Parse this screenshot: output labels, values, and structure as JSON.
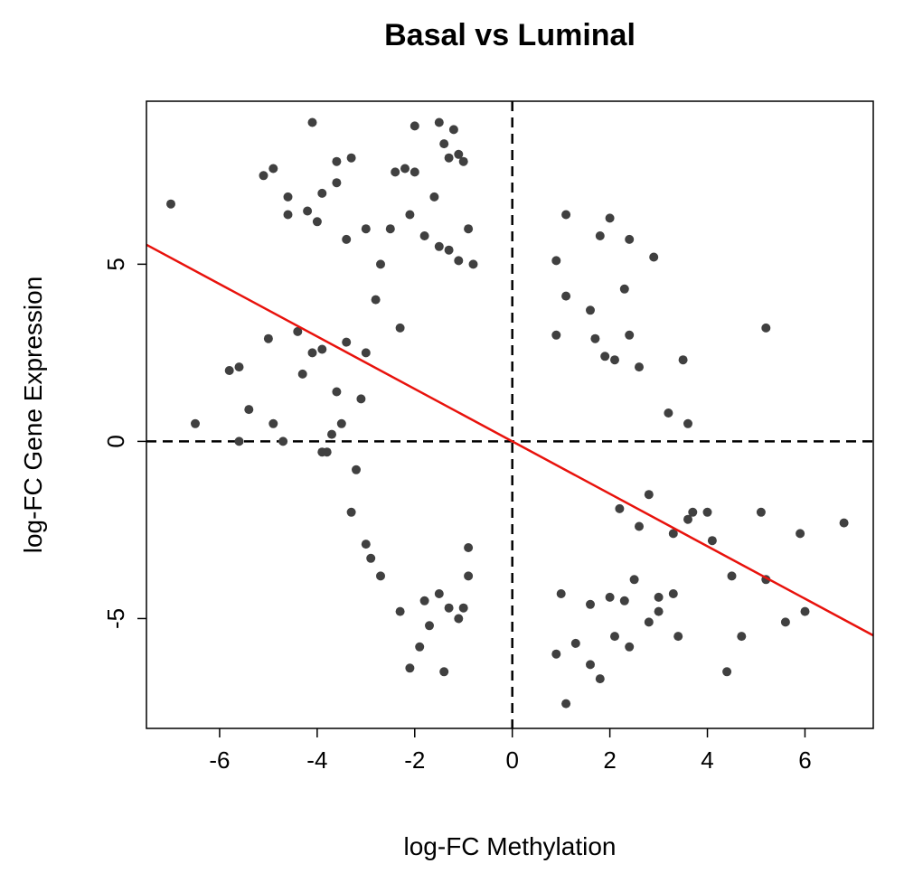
{
  "chart_data": {
    "type": "scatter",
    "title": "Basal vs Luminal",
    "xlabel": "log-FC Methylation",
    "ylabel": "log-FC Gene Expression",
    "xlim": [
      -7.5,
      7.4
    ],
    "ylim": [
      -8.1,
      9.6
    ],
    "x_ticks": [
      -6,
      -4,
      -2,
      0,
      2,
      4,
      6
    ],
    "y_ticks": [
      -5,
      0,
      5
    ],
    "x_tick_labels": [
      "-6",
      "-4",
      "-2",
      "0",
      "2",
      "4",
      "6"
    ],
    "y_tick_labels": [
      "-5",
      "0",
      "5"
    ],
    "grid": false,
    "reference_lines": {
      "x": 0,
      "y": 0
    },
    "regression_line": {
      "slope": -0.74,
      "intercept": 0.0
    },
    "colors": {
      "points": "#404040",
      "regression": "#e8120c",
      "reference": "#000000"
    },
    "series": [
      {
        "points": [
          [
            -7.0,
            6.7
          ],
          [
            -5.1,
            7.5
          ],
          [
            -4.9,
            7.7
          ],
          [
            -4.1,
            9.0
          ],
          [
            -3.6,
            7.9
          ],
          [
            -3.3,
            8.0
          ],
          [
            -3.6,
            7.3
          ],
          [
            -3.9,
            7.0
          ],
          [
            -4.2,
            6.5
          ],
          [
            -4.0,
            6.2
          ],
          [
            -4.6,
            6.9
          ],
          [
            -4.6,
            6.4
          ],
          [
            -3.4,
            5.7
          ],
          [
            -6.5,
            0.5
          ],
          [
            -5.8,
            2.0
          ],
          [
            -5.6,
            2.1
          ],
          [
            -5.4,
            0.9
          ],
          [
            -5.6,
            0.0
          ],
          [
            -5.0,
            2.9
          ],
          [
            -4.9,
            0.5
          ],
          [
            -4.7,
            0.0
          ],
          [
            -4.4,
            3.1
          ],
          [
            -4.3,
            1.9
          ],
          [
            -4.1,
            2.5
          ],
          [
            -3.9,
            2.6
          ],
          [
            -3.8,
            -0.3
          ],
          [
            -3.7,
            0.2
          ],
          [
            -3.6,
            1.4
          ],
          [
            -3.5,
            0.5
          ],
          [
            -3.4,
            2.8
          ],
          [
            -3.3,
            -2.0
          ],
          [
            -3.2,
            -0.8
          ],
          [
            -3.1,
            1.2
          ],
          [
            -3.0,
            2.5
          ],
          [
            -3.0,
            -2.9
          ],
          [
            -3.9,
            -0.3
          ],
          [
            -2.0,
            8.9
          ],
          [
            -1.5,
            9.0
          ],
          [
            -1.2,
            8.8
          ],
          [
            -1.3,
            8.0
          ],
          [
            -1.1,
            8.1
          ],
          [
            -1.0,
            7.9
          ],
          [
            -1.4,
            8.4
          ],
          [
            -2.2,
            7.7
          ],
          [
            -2.4,
            7.6
          ],
          [
            -2.0,
            7.6
          ],
          [
            -1.6,
            6.9
          ],
          [
            -2.1,
            6.4
          ],
          [
            -2.5,
            6.0
          ],
          [
            -1.8,
            5.8
          ],
          [
            -1.5,
            5.5
          ],
          [
            -1.3,
            5.4
          ],
          [
            -1.1,
            5.1
          ],
          [
            -0.9,
            6.0
          ],
          [
            -0.8,
            5.0
          ],
          [
            -2.7,
            5.0
          ],
          [
            -3.0,
            6.0
          ],
          [
            -2.8,
            4.0
          ],
          [
            -2.3,
            3.2
          ],
          [
            -0.9,
            -3.8
          ],
          [
            -1.0,
            -4.7
          ],
          [
            -1.3,
            -4.7
          ],
          [
            -1.5,
            -4.3
          ],
          [
            -1.8,
            -4.5
          ],
          [
            -2.3,
            -4.8
          ],
          [
            -1.7,
            -5.2
          ],
          [
            -1.9,
            -5.8
          ],
          [
            -2.1,
            -6.4
          ],
          [
            -1.4,
            -6.5
          ],
          [
            -1.1,
            -5.0
          ],
          [
            -0.9,
            -3.0
          ],
          [
            -2.7,
            -3.8
          ],
          [
            -2.9,
            -3.3
          ],
          [
            0.9,
            5.1
          ],
          [
            1.1,
            6.4
          ],
          [
            1.8,
            5.8
          ],
          [
            2.0,
            6.3
          ],
          [
            2.4,
            5.7
          ],
          [
            2.9,
            5.2
          ],
          [
            1.1,
            4.1
          ],
          [
            2.3,
            4.3
          ],
          [
            1.6,
            3.7
          ],
          [
            0.9,
            3.0
          ],
          [
            1.7,
            2.9
          ],
          [
            2.4,
            3.0
          ],
          [
            2.1,
            2.3
          ],
          [
            3.5,
            2.3
          ],
          [
            5.2,
            3.2
          ],
          [
            1.9,
            2.4
          ],
          [
            2.6,
            2.1
          ],
          [
            3.2,
            0.8
          ],
          [
            3.6,
            0.5
          ],
          [
            3.7,
            -2.0
          ],
          [
            3.6,
            -2.2
          ],
          [
            4.0,
            -2.0
          ],
          [
            4.1,
            -2.8
          ],
          [
            4.5,
            -3.8
          ],
          [
            4.7,
            -5.5
          ],
          [
            4.4,
            -6.5
          ],
          [
            5.1,
            -2.0
          ],
          [
            5.2,
            -3.9
          ],
          [
            5.6,
            -5.1
          ],
          [
            5.9,
            -2.6
          ],
          [
            6.0,
            -4.8
          ],
          [
            6.8,
            -2.3
          ],
          [
            3.4,
            -5.5
          ],
          [
            3.3,
            -4.3
          ],
          [
            3.0,
            -4.8
          ],
          [
            3.0,
            -4.4
          ],
          [
            2.8,
            -5.1
          ],
          [
            2.4,
            -5.8
          ],
          [
            2.1,
            -5.5
          ],
          [
            1.8,
            -6.7
          ],
          [
            1.6,
            -6.3
          ],
          [
            1.3,
            -5.7
          ],
          [
            1.1,
            -7.4
          ],
          [
            0.9,
            -6.0
          ],
          [
            1.0,
            -4.3
          ],
          [
            2.5,
            -3.9
          ],
          [
            2.3,
            -4.5
          ],
          [
            2.0,
            -4.4
          ],
          [
            1.6,
            -4.6
          ],
          [
            2.6,
            -2.4
          ],
          [
            2.2,
            -1.9
          ],
          [
            2.8,
            -1.5
          ],
          [
            3.3,
            -2.6
          ]
        ]
      }
    ]
  }
}
